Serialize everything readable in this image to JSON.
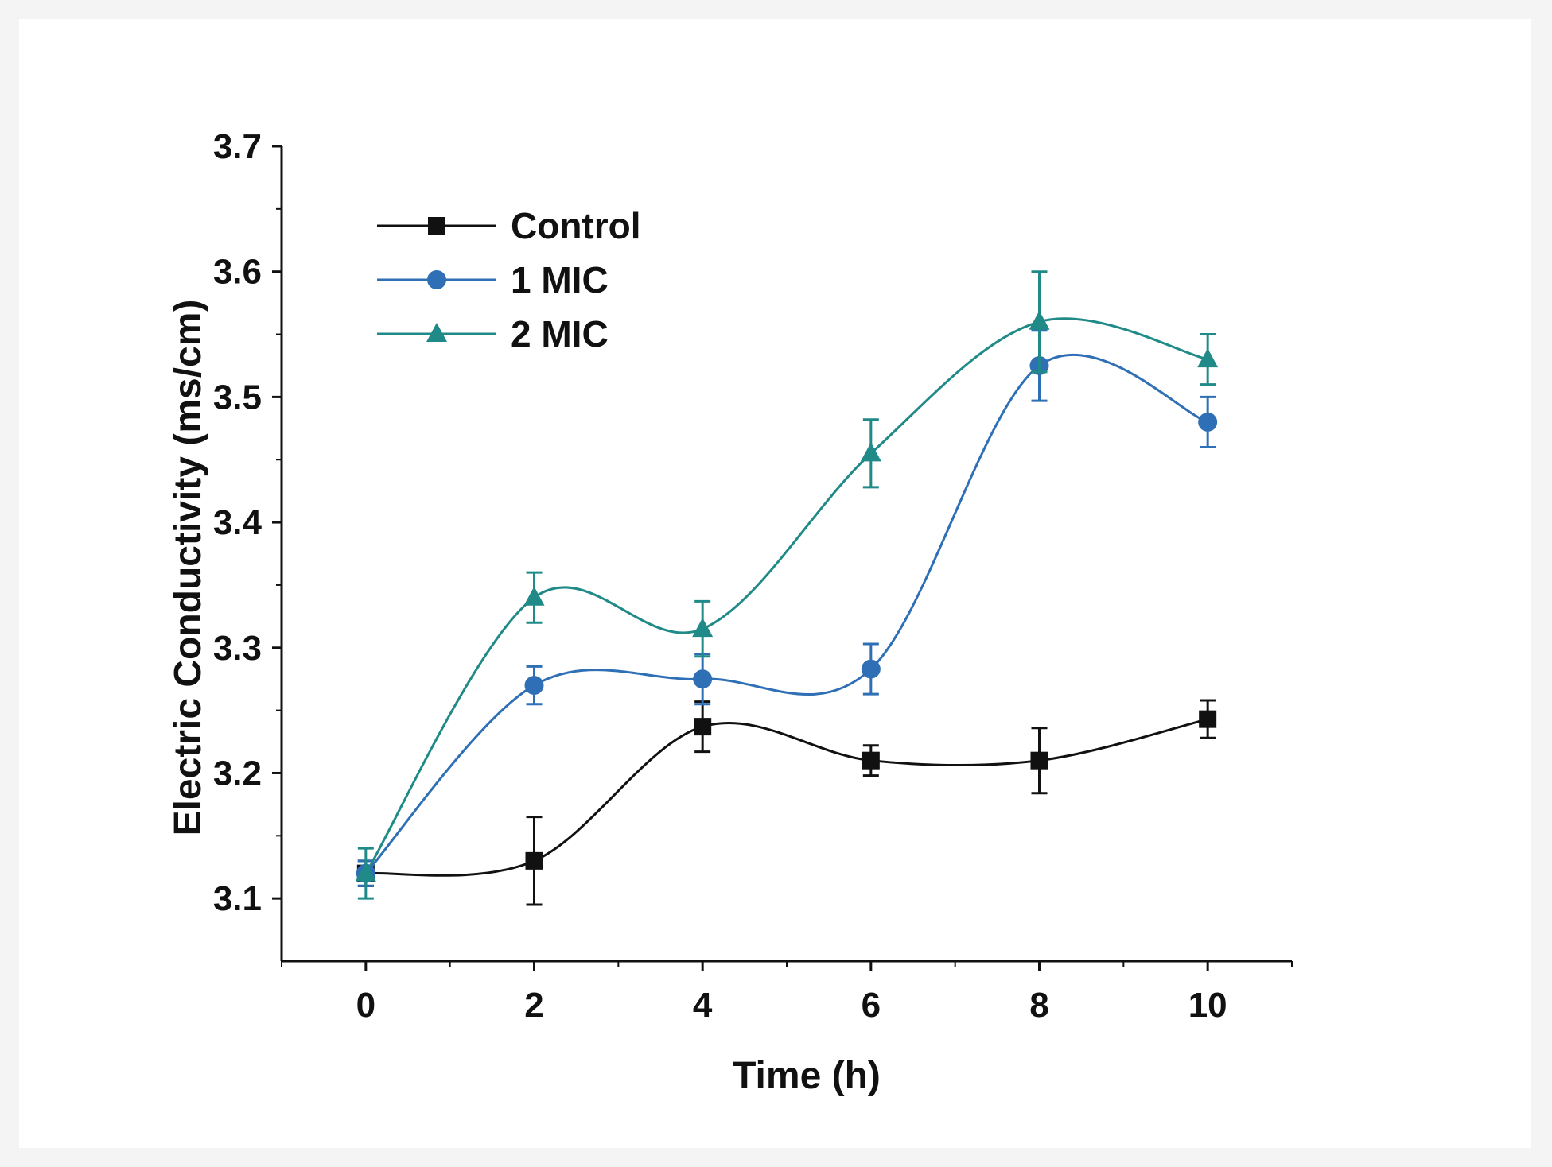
{
  "chart_data": {
    "type": "line",
    "title": "",
    "xlabel": "Time (h)",
    "ylabel": "Electric Conductivity (ms/cm)",
    "xlim": [
      -1,
      11
    ],
    "ylim": [
      3.05,
      3.7
    ],
    "xticks": [
      0,
      2,
      4,
      6,
      8,
      10
    ],
    "xtick_labels": [
      "0",
      "2",
      "4",
      "6",
      "8",
      "10"
    ],
    "yticks": [
      3.1,
      3.2,
      3.3,
      3.4,
      3.5,
      3.6,
      3.7
    ],
    "ytick_labels": [
      "3.1",
      "3.2",
      "3.3",
      "3.4",
      "3.5",
      "3.6",
      "3.7"
    ],
    "legend_position": "top-left",
    "grid": false,
    "x": [
      0,
      2,
      4,
      6,
      8,
      10
    ],
    "series": [
      {
        "name": "Control",
        "color": "#111111",
        "marker": "square",
        "values": [
          3.12,
          3.13,
          3.237,
          3.21,
          3.21,
          3.243
        ],
        "errors": [
          0.01,
          0.035,
          0.02,
          0.012,
          0.026,
          0.015
        ]
      },
      {
        "name": "1 MIC",
        "color": "#2e6fb5",
        "marker": "circle",
        "values": [
          3.12,
          3.27,
          3.275,
          3.283,
          3.525,
          3.48
        ],
        "errors": [
          0.01,
          0.015,
          0.02,
          0.02,
          0.028,
          0.02
        ]
      },
      {
        "name": "2 MIC",
        "color": "#1f8a87",
        "marker": "triangle",
        "values": [
          3.12,
          3.34,
          3.315,
          3.455,
          3.56,
          3.53
        ],
        "errors": [
          0.02,
          0.02,
          0.022,
          0.027,
          0.04,
          0.02
        ]
      }
    ]
  }
}
